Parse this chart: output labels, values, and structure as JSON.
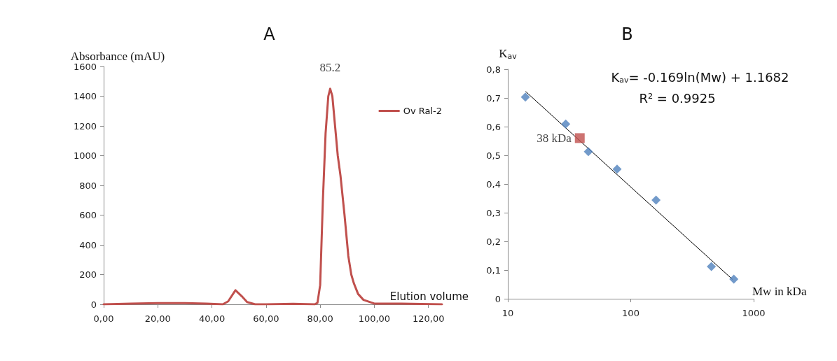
{
  "chart_data": [
    {
      "type": "line",
      "title": "A",
      "xlabel": "Elution volume",
      "ylabel": "Absorbance (mAU)",
      "legend": "top right",
      "marker": "none",
      "xlim": [
        0,
        125
      ],
      "xticks": [
        {
          "value": 0,
          "label": "0,00"
        },
        {
          "value": 20,
          "label": "20,00"
        },
        {
          "value": 40,
          "label": "40,00"
        },
        {
          "value": 60,
          "label": "60,00"
        },
        {
          "value": 80,
          "label": "80,00"
        },
        {
          "value": 100,
          "label": "100,00"
        },
        {
          "value": 120,
          "label": "120,00"
        }
      ],
      "ylim": [
        0,
        1600
      ],
      "yticks": [
        0,
        200,
        400,
        600,
        800,
        1000,
        1200,
        1400,
        1600
      ],
      "x": [
        0,
        10,
        20,
        30,
        38,
        44,
        46,
        48.7,
        51,
        53,
        56,
        60,
        70,
        78,
        79,
        80,
        81,
        82,
        83,
        83.7,
        84.5,
        85.5,
        86.5,
        87.5,
        89,
        90.4,
        91.5,
        92.4,
        94,
        96,
        100,
        110,
        125
      ],
      "series": [
        {
          "name": "Ov Ral-2",
          "color": "#c0504d",
          "values": [
            0,
            5,
            8,
            8,
            5,
            0,
            20,
            95,
            55,
            15,
            0,
            0,
            3,
            0,
            10,
            130,
            700,
            1150,
            1400,
            1450,
            1400,
            1200,
            1000,
            866,
            600,
            325,
            200,
            144,
            70,
            30,
            5,
            5,
            0
          ]
        }
      ],
      "annotations": [
        {
          "text": "85.2",
          "x": 83.7,
          "y": 1450
        }
      ]
    },
    {
      "type": "scatter",
      "title": "B",
      "xlabel": "Mw in kDa",
      "ylabel": "K$_{av}$",
      "log": "x",
      "xlim": [
        10,
        1000
      ],
      "xticks": [
        10,
        100,
        1000
      ],
      "ylim": [
        0,
        0.8
      ],
      "yticks": [
        {
          "value": 0,
          "label": "0"
        },
        {
          "value": 0.1,
          "label": "0,1"
        },
        {
          "value": 0.2,
          "label": "0,2"
        },
        {
          "value": 0.3,
          "label": "0,3"
        },
        {
          "value": 0.4,
          "label": "0,4"
        },
        {
          "value": 0.5,
          "label": "0,5"
        },
        {
          "value": 0.6,
          "label": "0,6"
        },
        {
          "value": 0.7,
          "label": "0,7"
        },
        {
          "value": 0.8,
          "label": "0,8"
        }
      ],
      "series": [
        {
          "color": "#4f81bd",
          "marker": "diamond",
          "x": [
            13.9,
            29.6,
            45.2,
            77.4,
            160.7,
            453,
            690
          ],
          "values": [
            0.703,
            0.609,
            0.513,
            0.452,
            0.344,
            0.112,
            0.068
          ]
        },
        {
          "type": "line",
          "color": "#000000",
          "marker": "none",
          "x": [
            14,
            670
          ],
          "values": [
            0.722,
            0.068
          ]
        },
        {
          "color": "#c0504d",
          "marker": "square",
          "x": [
            38.5
          ],
          "values": [
            0.56
          ]
        }
      ],
      "annotations": [
        "K$_{av}$= -0.169ln(Mw) + 1.1682",
        "R² = 0.9925",
        {
          "text": "38 kDa",
          "x": 38.5,
          "y": 0.56
        }
      ]
    }
  ]
}
